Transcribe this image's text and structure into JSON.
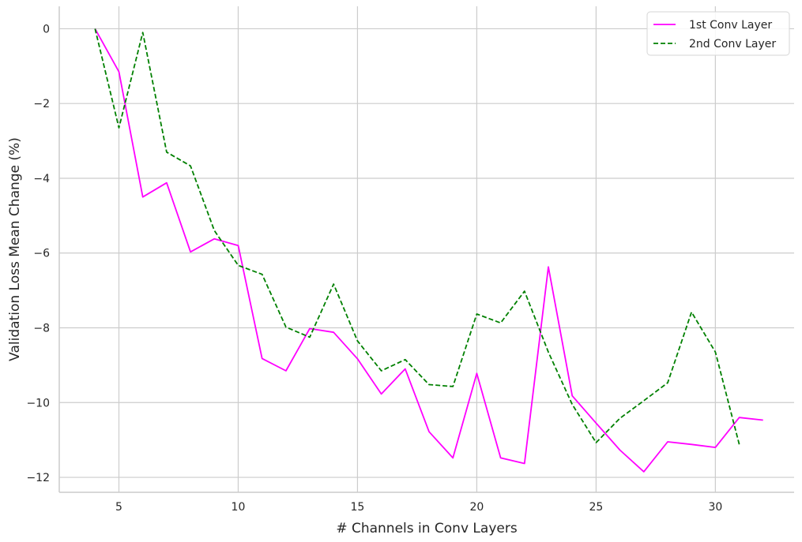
{
  "chart_data": {
    "type": "line",
    "title": "",
    "xlabel": "# Channels in Conv Layers",
    "ylabel": "Validation Loss Mean Change (%)",
    "xlim": [
      2.5,
      33.3
    ],
    "ylim": [
      -12.4,
      0.6
    ],
    "xticks": [
      5,
      10,
      15,
      20,
      25,
      30
    ],
    "yticks": [
      0,
      -2,
      -4,
      -6,
      -8,
      -10,
      -12
    ],
    "xtick_labels": [
      "5",
      "10",
      "15",
      "20",
      "25",
      "30"
    ],
    "ytick_labels": [
      "0",
      "−2",
      "−4",
      "−6",
      "−8",
      "−10",
      "−12"
    ],
    "grid": true,
    "legend_position": "top-right",
    "series": [
      {
        "name": "1st Conv Layer",
        "color": "#ff00ff",
        "style": "solid",
        "x": [
          4,
          5,
          6,
          7,
          8,
          9,
          10,
          11,
          12,
          13,
          14,
          15,
          16,
          17,
          18,
          19,
          20,
          21,
          22,
          23,
          24,
          25,
          26,
          27,
          28,
          29,
          30,
          31,
          32
        ],
        "y": [
          0,
          -1.15,
          -4.5,
          -4.12,
          -5.97,
          -5.62,
          -5.8,
          -8.82,
          -9.15,
          -8.02,
          -8.12,
          -8.83,
          -9.77,
          -9.1,
          -10.78,
          -11.48,
          -9.22,
          -11.48,
          -11.63,
          -6.37,
          -9.82,
          -10.55,
          -11.27,
          -11.85,
          -11.05,
          -11.12,
          -11.2,
          -10.4,
          -10.47
        ]
      },
      {
        "name": "2nd Conv Layer",
        "color": "#008000",
        "style": "dashed",
        "x": [
          4,
          5,
          6,
          7,
          8,
          9,
          10,
          11,
          12,
          13,
          14,
          15,
          16,
          17,
          18,
          19,
          20,
          21,
          22,
          23,
          24,
          25,
          26,
          27,
          28,
          29,
          30,
          31
        ],
        "y": [
          0,
          -2.65,
          -0.1,
          -3.3,
          -3.67,
          -5.4,
          -6.33,
          -6.57,
          -7.98,
          -8.25,
          -6.83,
          -8.35,
          -9.15,
          -8.85,
          -9.52,
          -9.57,
          -7.63,
          -7.87,
          -7.02,
          -8.65,
          -10.05,
          -11.07,
          -10.42,
          -9.95,
          -9.47,
          -7.58,
          -8.65,
          -11.12
        ]
      }
    ]
  }
}
